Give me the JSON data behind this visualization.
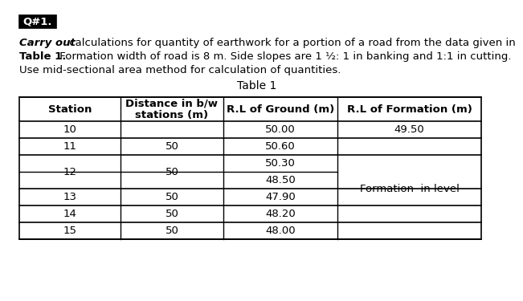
{
  "title_box_text": "Q#1.",
  "carry_out_bold": "Carry out",
  "para1_rest": " calculations for quantity of earthwork for a portion of a road from the data given in",
  "table1_bold": "Table 1.",
  "para2_rest": " Formation width of road is 8 m. Side slopes are 1 ½: 1 in banking and 1:1 in cutting.",
  "para3": "Use mid-sectional area method for calculation of quantities.",
  "table_title": "Table 1",
  "col_headers": [
    "Station",
    "Distance in b/w\nstations (m)",
    "R.L of Ground (m)",
    "R.L of Formation (m)"
  ],
  "formation_note": "Formation  in level",
  "bg_color": "#ffffff",
  "body_font_size": 9.5,
  "header_font_size": 9.5
}
